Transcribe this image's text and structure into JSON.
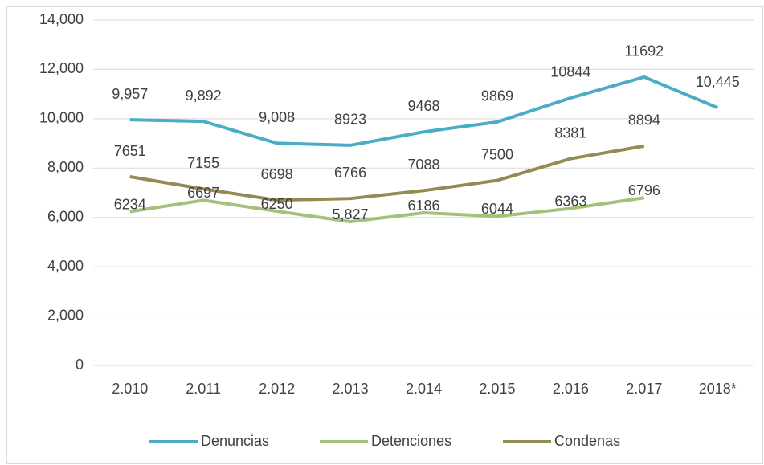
{
  "chart_data": {
    "type": "line",
    "categories": [
      "2.010",
      "2.011",
      "2.012",
      "2.013",
      "2.014",
      "2.015",
      "2.016",
      "2.017",
      "2018*"
    ],
    "series": [
      {
        "name": "Denuncias",
        "color": "#4bacc6",
        "values": [
          9957,
          9892,
          9008,
          8923,
          9468,
          9869,
          10844,
          11692,
          10445
        ],
        "value_labels": [
          "9,957",
          "9,892",
          "9,008",
          "8923",
          "9468",
          "9869",
          "10844",
          "11692",
          "10,445"
        ]
      },
      {
        "name": "Detenciones",
        "color": "#a4c07b",
        "values": [
          6234,
          6697,
          6250,
          5827,
          6186,
          6044,
          6363,
          6796,
          null
        ],
        "value_labels": [
          "6234",
          "6697",
          "6250",
          "5,827",
          "6186",
          "6044",
          "6363",
          "6796",
          null
        ]
      },
      {
        "name": "Condenas",
        "color": "#948a54",
        "values": [
          7651,
          7155,
          6698,
          6766,
          7088,
          7500,
          8381,
          8894,
          null
        ],
        "value_labels": [
          "7651",
          "7155",
          "6698",
          "6766",
          "7088",
          "7500",
          "8381",
          "8894",
          null
        ]
      }
    ],
    "ylim": [
      0,
      14000
    ],
    "yticks": [
      0,
      {
        "value": 2000,
        "label": "2,000"
      },
      {
        "value": 4000,
        "label": "4,000"
      },
      {
        "value": 6000,
        "label": "6,000"
      },
      {
        "value": 8000,
        "label": "8,000"
      },
      {
        "value": 10000,
        "label": "10,000"
      },
      {
        "value": 12000,
        "label": "12,000"
      },
      {
        "value": 14000,
        "label": "14,000"
      }
    ],
    "grid": true,
    "legend": "bottom"
  }
}
